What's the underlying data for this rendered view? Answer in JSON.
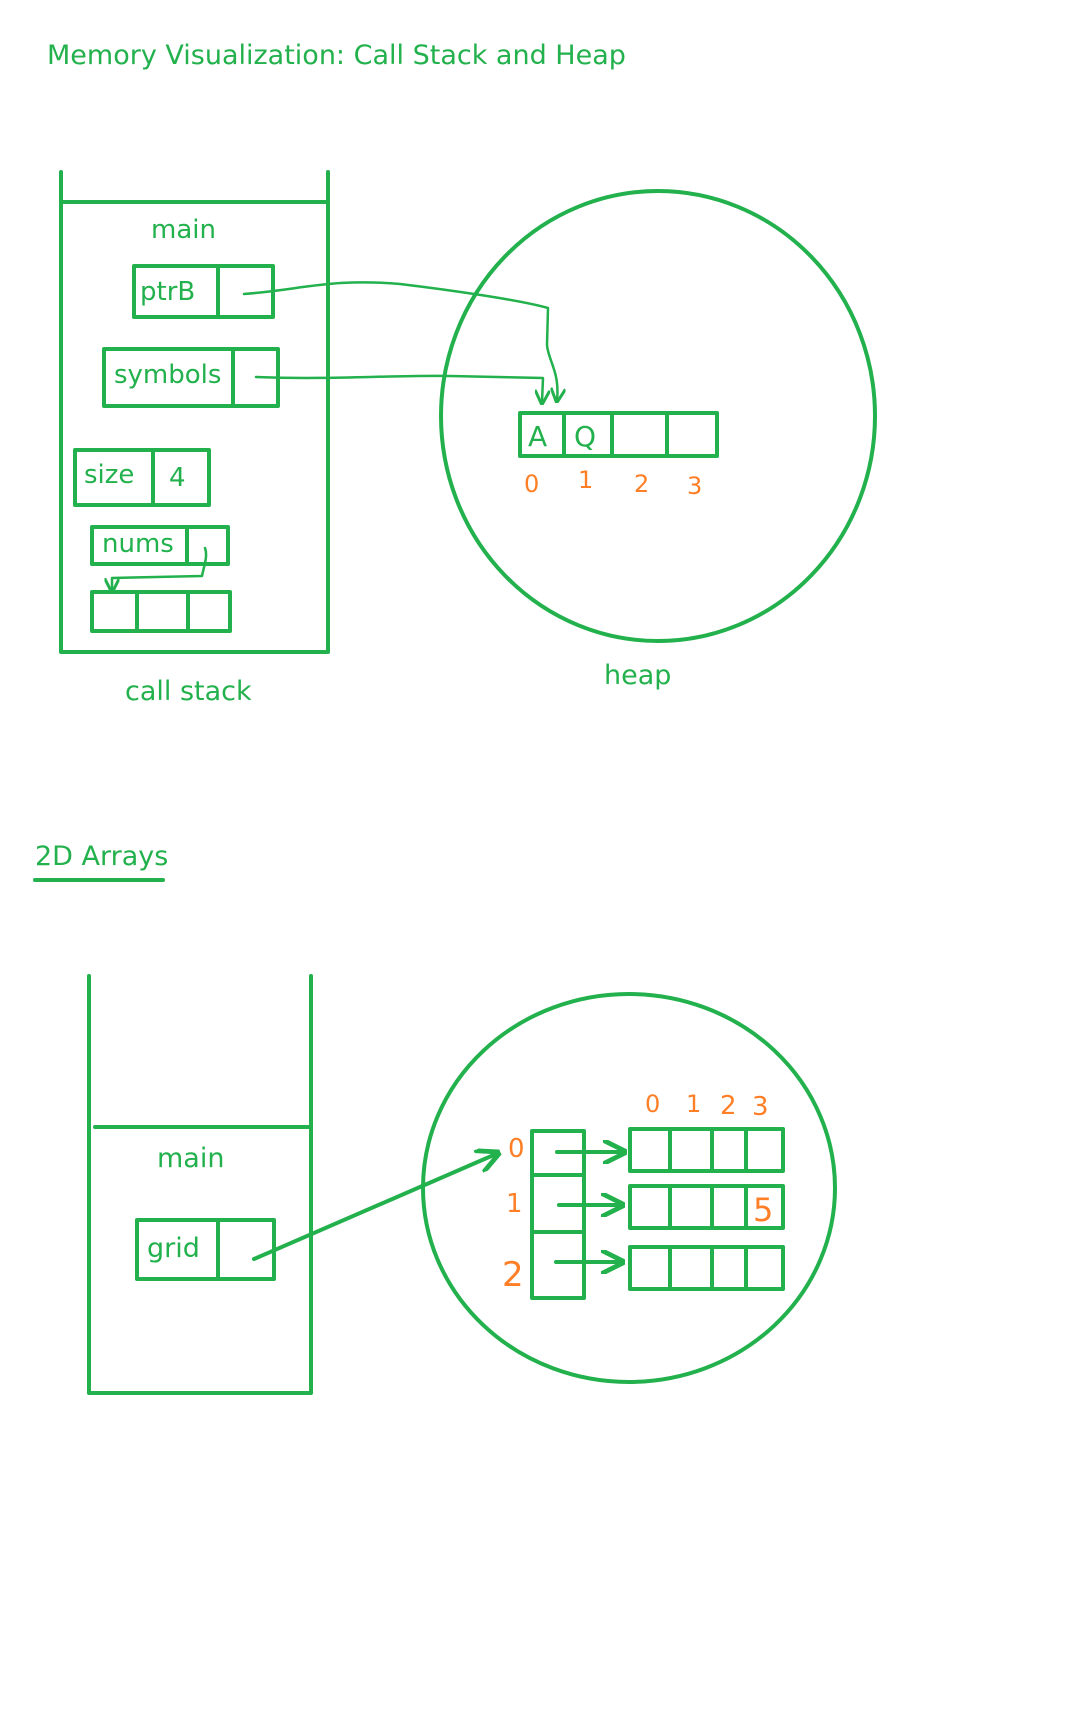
{
  "title": "Memory Visualization: Call Stack and Heap",
  "section1": {
    "frame_label": "main",
    "vars": {
      "ptrB": "ptrB",
      "symbols": "symbols",
      "size": "size",
      "size_value": "4",
      "nums": "nums"
    },
    "stack_caption": "call stack",
    "heap_caption": "heap",
    "heap_array": {
      "cells": [
        "A",
        "Q",
        "",
        ""
      ],
      "indices": [
        "0",
        "1",
        "2",
        "3"
      ]
    }
  },
  "section2": {
    "heading": "2D Arrays",
    "frame_label": "main",
    "var_grid": "grid",
    "row_indices": [
      "0",
      "1",
      "2"
    ],
    "col_indices": [
      "0",
      "1",
      "2",
      "3"
    ],
    "cell_value": "5"
  },
  "colors": {
    "stroke": "#22b14c",
    "index": "#ff7f27"
  }
}
